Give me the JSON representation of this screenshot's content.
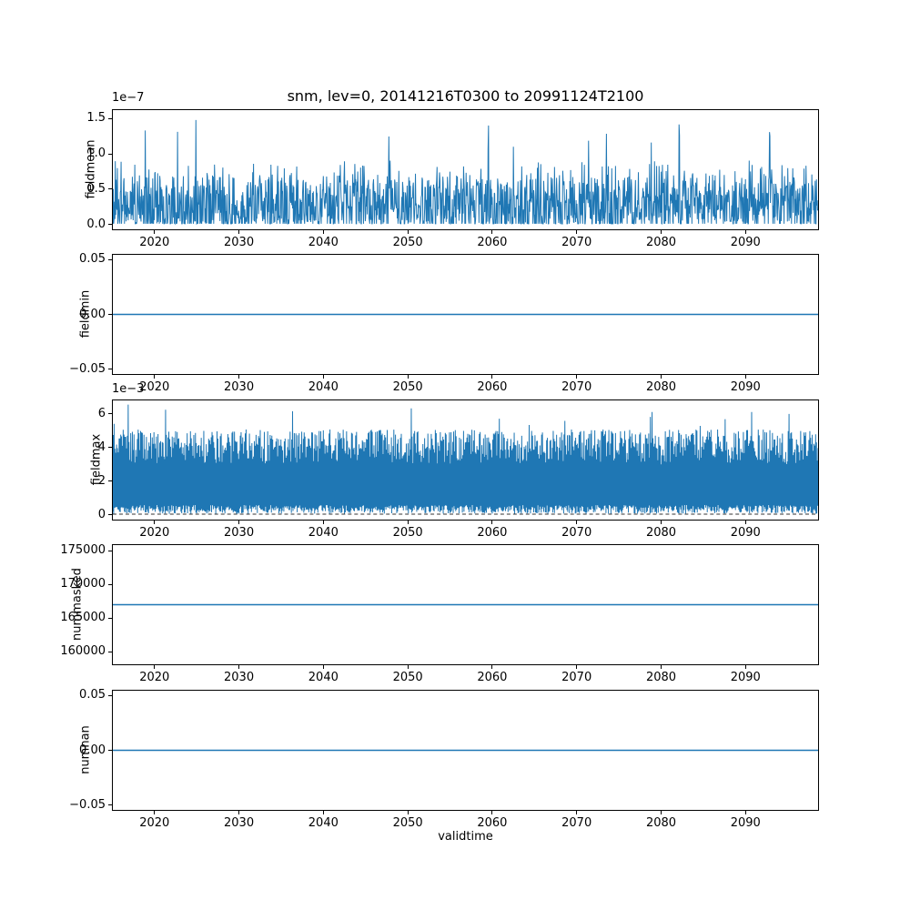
{
  "figure": {
    "title": "snm, lev=0, 20141216T0300 to 20991124T2100",
    "xlabel": "validtime",
    "line_color": "#1f77b4",
    "background_color": "#ffffff",
    "text_color": "#000000"
  },
  "chart_data": [
    {
      "type": "line",
      "ylabel": "fieldmean",
      "offset_text": "1e−7",
      "xlim": [
        2014.96,
        2098.7
      ],
      "ylim": [
        -0.08,
        1.63
      ],
      "x_ticks": {
        "values": [
          2020,
          2030,
          2040,
          2050,
          2060,
          2070,
          2080,
          2090
        ],
        "labels": [
          "2020",
          "2030",
          "2040",
          "2050",
          "2060",
          "2070",
          "2080",
          "2090"
        ]
      },
      "y_ticks": {
        "values": [
          0.0,
          0.5,
          1.0,
          1.5
        ],
        "labels": [
          "0.0",
          "0.5",
          "1.0",
          "1.5"
        ]
      },
      "series": {
        "name": "fieldmean",
        "kind": "spiky",
        "seed": 1234,
        "n": 1700,
        "zero_prob": 0.18,
        "exp": 1.1,
        "env_min": 0.5,
        "env_max": 0.95,
        "spike_prob": 0.01,
        "spike_min": 1.0,
        "spike_max": 1.55,
        "line_width": 1.0
      },
      "summary": "Dense noisy series oscillating between 0 and ~0.9e-7 with occasional peaks up to ~1.55e-7 across 2015-2099"
    },
    {
      "type": "line",
      "ylabel": "fieldmin",
      "offset_text": "",
      "xlim": [
        2014.96,
        2098.7
      ],
      "ylim": [
        -0.055,
        0.055
      ],
      "x_ticks": {
        "values": [
          2020,
          2030,
          2040,
          2050,
          2060,
          2070,
          2080,
          2090
        ],
        "labels": [
          "2020",
          "2030",
          "2040",
          "2050",
          "2060",
          "2070",
          "2080",
          "2090"
        ]
      },
      "y_ticks": {
        "values": [
          -0.05,
          0.0,
          0.05
        ],
        "labels": [
          "−0.05",
          "0.00",
          "0.05"
        ]
      },
      "series": {
        "name": "fieldmin",
        "kind": "constant",
        "value": 0.0,
        "line_width": 1.5
      },
      "summary": "Constant flat line at 0.00"
    },
    {
      "type": "line",
      "ylabel": "fieldmax",
      "offset_text": "1e−3",
      "xlim": [
        2014.96,
        2098.7
      ],
      "ylim": [
        -0.33,
        6.85
      ],
      "x_ticks": {
        "values": [
          2020,
          2030,
          2040,
          2050,
          2060,
          2070,
          2080,
          2090
        ],
        "labels": [
          "2020",
          "2030",
          "2040",
          "2050",
          "2060",
          "2070",
          "2080",
          "2090"
        ]
      },
      "y_ticks": {
        "values": [
          0,
          2,
          4,
          6
        ],
        "labels": [
          "0",
          "2",
          "4",
          "6"
        ]
      },
      "series": {
        "name": "fieldmax",
        "kind": "band",
        "seed": 99,
        "n": 1700,
        "low_min": 0.02,
        "low_max": 0.55,
        "high_min": 3.0,
        "high_max": 5.1,
        "exp": 0.8,
        "spike_prob": 0.012,
        "spike_min": 5.3,
        "spike_max": 6.6,
        "dip_prob": 0.0012,
        "dip_value": 1.45,
        "line_width": 1.0
      },
      "hline": {
        "y": 0,
        "color": "#333333",
        "dash": "4 3",
        "width": 1
      },
      "summary": "Dense band oscillating between ~0 and ~5e-3 with peaks up to ~6.5e-3; dashed reference line at 0"
    },
    {
      "type": "line",
      "ylabel": "nummasked",
      "offset_text": "",
      "xlim": [
        2014.96,
        2098.7
      ],
      "ylim": [
        158000,
        176000
      ],
      "x_ticks": {
        "values": [
          2020,
          2030,
          2040,
          2050,
          2060,
          2070,
          2080,
          2090
        ],
        "labels": [
          "2020",
          "2030",
          "2040",
          "2050",
          "2060",
          "2070",
          "2080",
          "2090"
        ]
      },
      "y_ticks": {
        "values": [
          160000,
          165000,
          170000,
          175000
        ],
        "labels": [
          "160000",
          "165000",
          "170000",
          "175000"
        ]
      },
      "series": {
        "name": "nummasked",
        "kind": "constant",
        "value": 167000,
        "line_width": 1.5
      },
      "summary": "Constant flat line at ~167000"
    },
    {
      "type": "line",
      "ylabel": "numnan",
      "offset_text": "",
      "xlim": [
        2014.96,
        2098.7
      ],
      "ylim": [
        -0.055,
        0.055
      ],
      "x_ticks": {
        "values": [
          2020,
          2030,
          2040,
          2050,
          2060,
          2070,
          2080,
          2090
        ],
        "labels": [
          "2020",
          "2030",
          "2040",
          "2050",
          "2060",
          "2070",
          "2080",
          "2090"
        ]
      },
      "y_ticks": {
        "values": [
          -0.05,
          0.0,
          0.05
        ],
        "labels": [
          "−0.05",
          "0.00",
          "0.05"
        ]
      },
      "series": {
        "name": "numnan",
        "kind": "constant",
        "value": 0.0,
        "line_width": 1.5
      },
      "summary": "Constant flat line at 0.00"
    }
  ]
}
